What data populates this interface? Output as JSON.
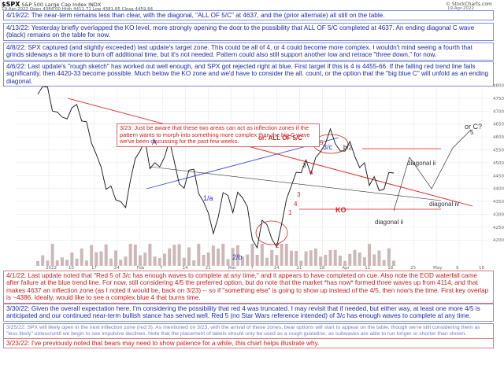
{
  "header": {
    "symbol": "$SPX",
    "description": "S&P 500 Large Cap Index",
    "exchange": "INDX",
    "date": "19-Apr-2022",
    "quote": "Open 4384.00 High 4411.71 Low 4381.85 Close 4459.84",
    "brand": "© StockCharts.com",
    "brand_date": "19-Apr-2022"
  },
  "notes_top": [
    {
      "date": "4/19/22:",
      "text": "The near-term remains less than clear, with the diagonal, \"ALL OF 5/C\" at 4637, and the (prior alternate) all still on the table."
    },
    {
      "date": "4/13/22:",
      "text": "Yesterday briefly overlapped the KO level, more strongly opening the door to the possibility that ALL OF 5/C completed at 4637.  An ending diagonal C wave (black) remains on the table for now."
    },
    {
      "date": "4/8/22:",
      "text": "SPX captured (and slightly exceeded) last update's target zone.  This could be all of 4, or 4 could become more complex.  I wouldn't mind seeing a fourth that grinds sideways a bit more to burn off additional time, but it's not needed.  Pattern could also still support another low and retrace \"three down,\" for now."
    },
    {
      "date": "4/6/22:",
      "text": "Last update's \"rough sketch\" has worked out well enough, and SPX got rejected right at blue.  First target if this is 4 is 4455-66.  If the falling red trend line fails significantly, then 4420-33 become possible.  Much below the KO zone and we'd have to consider the all. count, or the option that the \"big blue C\" will unfold as an ending diagonal."
    }
  ],
  "notes_bottom": [
    {
      "date": "4/1/22:",
      "text": "Last update noted that \"Red 5 of 3/c has enough waves to complete at any time,\" and it appears to have completed on cue.  Also note the EOD waterfall came after failure at the blue trend line.  For now, still considering 4/5 the preferred option, but do note that the market *has now* formed three waves up from 4114, and that makes 4637 an inflection zone (as I noted it would be, back on 3/23) -- so if \"something else\" is going to show up instead of the 4/5, then now's the time.  First key overlap is ~4386.  Ideally, would like to see a complex blue 4 that burns time."
    },
    {
      "date": "3/30/22:",
      "text": "Given the overall expectation here, I'm considering the possibility that red 4 was truncated.  I may revisit that if needed, but either way, at least one more 4/5 is anticipated and our continued near-term bullish stance has served well.  Red 5 (no Star Wars reference intended) of 3/c has enough waves to complete at any time."
    },
    {
      "date": "3/25/22:",
      "text": "SPX will likely open in the next inflection zone (red 3).  As mentioned on 3/23, with the arrival of these zones, bear options will start to appear on the table, though we're still considering them as \"less likely\" unless/until we begin to see impulsive declines.  Note that the placement of labels should only be used as a rough guideline, as subwaves are able to run longer or shorter than shown."
    },
    {
      "date": "3/23/22:",
      "text": "I've previously noted that bears may need to show patience for a while, this chart helps illustrate why."
    }
  ],
  "inset_note": "3/23:  Just be aware that these two areas can act as inflection zones if the pattern wants to morph into something more complex than the big C wave we've been discussing for the past few weeks.",
  "labels": {
    "or_all_of_5c": "or: ALL OF 5/C",
    "wave_3c": "3/c",
    "wave_a": "A",
    "wave_1a": "1/a",
    "wave_2b": "2/b",
    "wave_b2": "b/2",
    "wave_3": "3",
    "wave_4": "4",
    "wave_5": "5",
    "diagonal_ii": "diagonal ii",
    "diagonal_iv": "diagonal iv",
    "diagonal_ii_low": "diagonal ii",
    "or_c": "or C?",
    "ko": "KO",
    "red_1": "1",
    "red_2": "2",
    "red_3": "3",
    "red_4": "4",
    "red_5": "5"
  },
  "colors": {
    "note_text": "#1a2aa0",
    "note_border": "#7f8fd8",
    "red": "#dd1f1f",
    "blue": "#2233cc",
    "price_line": "#111111",
    "volume": "#b79a9a",
    "grid": "#e6e6e6"
  },
  "chart_data": {
    "type": "line",
    "symbol": "$SPX",
    "x_tick_labels": [
      "2022",
      "10",
      "17",
      "24",
      "Feb",
      "7",
      "14",
      "21",
      "Mar",
      "7",
      "14",
      "21",
      "28",
      "Apr",
      "11",
      "18",
      "25",
      "May",
      "9",
      "16"
    ],
    "y_tick_labels": [
      "4200",
      "4250",
      "4300",
      "4350",
      "4400",
      "4450",
      "4500",
      "4550",
      "4600",
      "4650",
      "4700",
      "4750",
      "4800"
    ],
    "ylim": [
      4100,
      4820
    ],
    "price": [
      4766,
      4796,
      4793,
      4700,
      4696,
      4677,
      4670,
      4713,
      4726,
      4662,
      4659,
      4577,
      4532,
      4482,
      4397,
      4410,
      4356,
      4349,
      4326,
      4432,
      4516,
      4546,
      4589,
      4477,
      4500,
      4484,
      4522,
      4587,
      4504,
      4418,
      4401,
      4471,
      4475,
      4380,
      4348,
      4304,
      4225,
      4289,
      4384,
      4373,
      4306,
      4386,
      4363,
      4329,
      4202,
      4170,
      4277,
      4260,
      4204,
      4173,
      4262,
      4358,
      4411,
      4463,
      4461,
      4511,
      4456,
      4520,
      4543,
      4575,
      4631,
      4574,
      4546,
      4545,
      4582,
      4525,
      4481,
      4500,
      4412,
      4446,
      4392,
      4397,
      4462,
      4460
    ],
    "volume_note": "volume bars shown beneath price"
  }
}
